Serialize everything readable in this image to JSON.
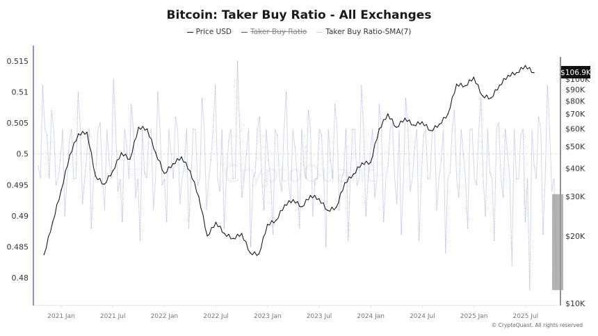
{
  "chart_data": {
    "type": "line",
    "title": "Bitcoin: Taker Buy Ratio - All Exchanges",
    "legend": [
      {
        "name": "Price USD",
        "color": "#1a1a1a",
        "hidden": false
      },
      {
        "name": "Taker Buy Ratio",
        "color": "#555555",
        "hidden": true
      },
      {
        "name": "Taker Buy Ratio-SMA(7)",
        "color": "#c8c8e8",
        "hidden": false
      }
    ],
    "legend_position": "top-center",
    "x_ticks": [
      "2021 Jan",
      "2021 Jul",
      "2022 Jan",
      "2022 Jul",
      "2023 Jan",
      "2023 Jul",
      "2024 Jan",
      "2024 Jul",
      "2025 Jan",
      "2025 Jul"
    ],
    "left_axis": {
      "ticks": [
        "0.48",
        "0.485",
        "0.49",
        "0.495",
        "0.5",
        "0.505",
        "0.51",
        "0.515"
      ],
      "range": [
        0.4765,
        0.5165
      ]
    },
    "right_axis": {
      "scale": "log",
      "ticks": [
        "$10K",
        "$20K",
        "$30K",
        "$40K",
        "$50K",
        "$60K",
        "$70K",
        "$80K",
        "$90K",
        "$100K"
      ],
      "tick_values": [
        10000,
        20000,
        30000,
        40000,
        50000,
        60000,
        70000,
        80000,
        90000,
        100000
      ],
      "range": [
        10000,
        125000
      ],
      "current_label": "$106.9K"
    },
    "reference_line": 0.5,
    "x_range": [
      "2020-11",
      "2025-08"
    ],
    "series": [
      {
        "name": "Price USD",
        "axis": "right",
        "unit": "USD thousands",
        "months": [
          "2020-11",
          "2020-12",
          "2021-01",
          "2021-02",
          "2021-03",
          "2021-04",
          "2021-05",
          "2021-06",
          "2021-07",
          "2021-08",
          "2021-09",
          "2021-10",
          "2021-11",
          "2021-12",
          "2022-01",
          "2022-02",
          "2022-03",
          "2022-04",
          "2022-05",
          "2022-06",
          "2022-07",
          "2022-08",
          "2022-09",
          "2022-10",
          "2022-11",
          "2022-12",
          "2023-01",
          "2023-02",
          "2023-03",
          "2023-04",
          "2023-05",
          "2023-06",
          "2023-07",
          "2023-08",
          "2023-09",
          "2023-10",
          "2023-11",
          "2023-12",
          "2024-01",
          "2024-02",
          "2024-03",
          "2024-04",
          "2024-05",
          "2024-06",
          "2024-07",
          "2024-08",
          "2024-09",
          "2024-10",
          "2024-11",
          "2024-12",
          "2025-01",
          "2025-02",
          "2025-03",
          "2025-04",
          "2025-05",
          "2025-06",
          "2025-07",
          "2025-08"
        ],
        "values": [
          16.5,
          23,
          32,
          46,
          57,
          58,
          37,
          34,
          39,
          47,
          44,
          61,
          60,
          47,
          38,
          42,
          45,
          39,
          30,
          20,
          23,
          20.5,
          19.5,
          20.5,
          16.8,
          16.6,
          22.5,
          23.5,
          27.5,
          29,
          27,
          30.3,
          29.3,
          26,
          26.8,
          34.5,
          37.7,
          42.3,
          42.5,
          60,
          70,
          61,
          67,
          62.5,
          64.5,
          59,
          63,
          70,
          95,
          93.5,
          102,
          84.5,
          82.5,
          94,
          104,
          107,
          115,
          106.9
        ]
      },
      {
        "name": "Taker Buy Ratio-SMA(7)",
        "axis": "left",
        "values": [
          0.498,
          0.511,
          0.503,
          0.507,
          0.495,
          0.499,
          0.49,
          0.502,
          0.496,
          0.51,
          0.492,
          0.5,
          0.488,
          0.497,
          0.505,
          0.491,
          0.499,
          0.512,
          0.494,
          0.489,
          0.501,
          0.508,
          0.493,
          0.486,
          0.497,
          0.503,
          0.491,
          0.51,
          0.495,
          0.489,
          0.5,
          0.506,
          0.492,
          0.498,
          0.488,
          0.504,
          0.495,
          0.509,
          0.491,
          0.499,
          0.511,
          0.494,
          0.488,
          0.502,
          0.496,
          0.515,
          0.493,
          0.5,
          0.485,
          0.497,
          0.506,
          0.491,
          0.499,
          0.487,
          0.503,
          0.494,
          0.51,
          0.492,
          0.501,
          0.488,
          0.498,
          0.507,
          0.49,
          0.496,
          0.503,
          0.485,
          0.499,
          0.508,
          0.491,
          0.497,
          0.486,
          0.504,
          0.495,
          0.511,
          0.49,
          0.5,
          0.493,
          0.508,
          0.489,
          0.498,
          0.505,
          0.492,
          0.487,
          0.509,
          0.494,
          0.501,
          0.486,
          0.503,
          0.496,
          0.504,
          0.491,
          0.499,
          0.484,
          0.497,
          0.507,
          0.493,
          0.5,
          0.488,
          0.504,
          0.495,
          0.509,
          0.49,
          0.497,
          0.486,
          0.505,
          0.493,
          0.5,
          0.482,
          0.496,
          0.503,
          0.489,
          0.478,
          0.498,
          0.506,
          0.487,
          0.511,
          0.494,
          0.479
        ]
      }
    ],
    "highlight_box": {
      "y_from": 0.478,
      "y_to": 0.4935,
      "period": "2025-08"
    }
  },
  "watermark": "CryptoQuant",
  "copyright": "© CryptoQuant. All rights reserved"
}
